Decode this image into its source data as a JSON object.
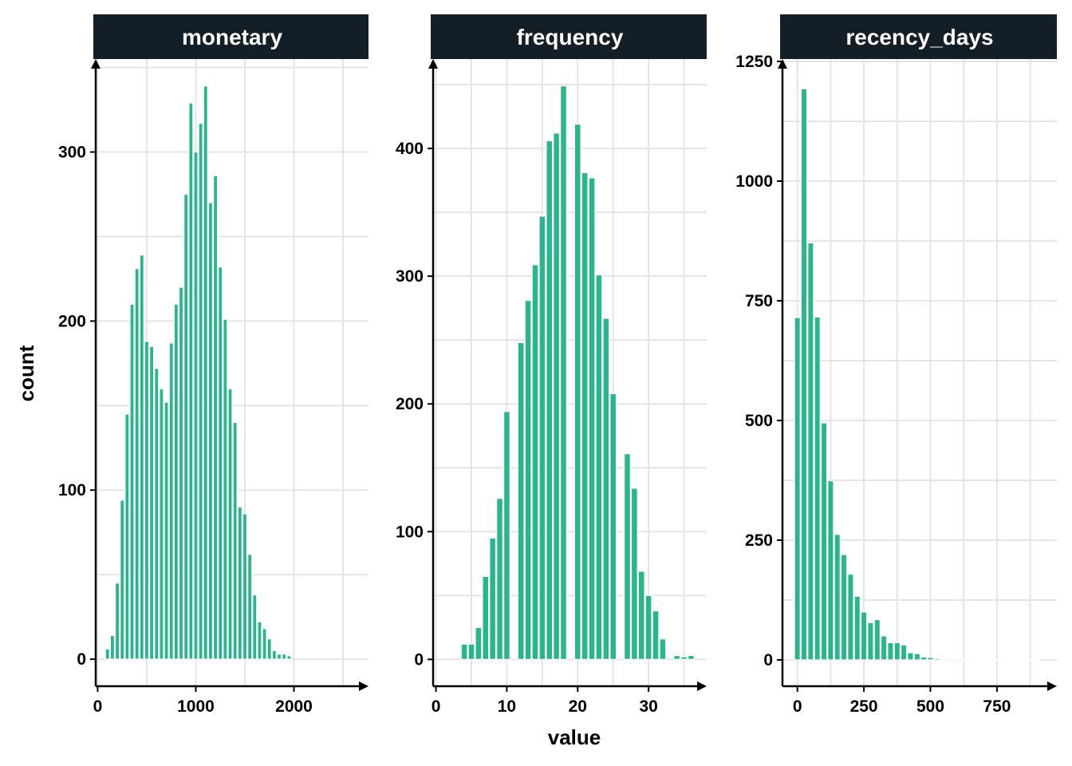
{
  "colors": {
    "bar": "#2ab58c",
    "strip_background": "#141e26",
    "strip_text": "#ffffff",
    "grid": "#e5e5e5",
    "axis": "#000000"
  },
  "chart_data": {
    "type": "bar",
    "layout": "facet_wrap",
    "xlabel": "value",
    "ylabel": "count",
    "facets": [
      {
        "title": "monetary",
        "bin_width": 50,
        "xlim": [
          -20,
          2760
        ],
        "ylim": [
          -16,
          355
        ],
        "x_ticks": [
          0,
          1000,
          2000
        ],
        "x_tick_labels": [
          "0",
          "1000",
          "2000"
        ],
        "y_ticks": [
          0,
          100,
          200,
          300
        ],
        "y_tick_labels": [
          "0",
          "100",
          "200",
          "300"
        ],
        "bin_centers": [
          0,
          50,
          100,
          150,
          200,
          250,
          300,
          350,
          400,
          450,
          500,
          550,
          600,
          650,
          700,
          750,
          800,
          850,
          900,
          950,
          1000,
          1050,
          1100,
          1150,
          1200,
          1250,
          1300,
          1350,
          1400,
          1450,
          1500,
          1550,
          1600,
          1650,
          1700,
          1750,
          1800,
          1850,
          1900,
          1950,
          2000,
          2050,
          2100,
          2150,
          2200,
          2250,
          2300,
          2350,
          2400,
          2450,
          2500,
          2550
        ],
        "counts": [
          0,
          0,
          6,
          14,
          45,
          94,
          145,
          210,
          231,
          239,
          188,
          185,
          172,
          160,
          152,
          187,
          210,
          220,
          275,
          329,
          300,
          317,
          339,
          270,
          286,
          232,
          201,
          160,
          140,
          90,
          86,
          62,
          38,
          22,
          18,
          12,
          5,
          3,
          3,
          2,
          0,
          0,
          0,
          0,
          0,
          0,
          0,
          0,
          0,
          0,
          0,
          0
        ]
      },
      {
        "title": "frequency",
        "bin_width": 1,
        "xlim": [
          -0.4,
          38.2
        ],
        "ylim": [
          -21,
          470
        ],
        "x_ticks": [
          0,
          10,
          20,
          30
        ],
        "x_tick_labels": [
          "0",
          "10",
          "20",
          "30"
        ],
        "y_ticks": [
          0,
          100,
          200,
          300,
          400
        ],
        "y_tick_labels": [
          "0",
          "100",
          "200",
          "300",
          "400"
        ],
        "bin_centers": [
          3,
          4,
          5,
          6,
          7,
          8,
          9,
          10,
          11,
          12,
          13,
          14,
          15,
          16,
          17,
          18,
          19,
          20,
          21,
          22,
          23,
          24,
          25,
          26,
          27,
          28,
          29,
          30,
          31,
          32,
          33,
          34,
          35,
          36
        ],
        "counts": [
          0,
          12,
          12,
          25,
          65,
          95,
          126,
          194,
          0,
          248,
          281,
          309,
          347,
          406,
          412,
          449,
          0,
          419,
          381,
          377,
          301,
          267,
          208,
          0,
          161,
          134,
          69,
          50,
          38,
          16,
          0,
          3,
          2,
          3
        ]
      },
      {
        "title": "recency_days",
        "bin_width": 25,
        "xlim": [
          -56,
          975
        ],
        "ylim": [
          -55,
          1255
        ],
        "x_ticks": [
          0,
          250,
          500,
          750
        ],
        "x_tick_labels": [
          "0",
          "250",
          "500",
          "750"
        ],
        "y_ticks": [
          0,
          250,
          500,
          750,
          1000,
          1250
        ],
        "y_tick_labels": [
          "0",
          "250",
          "500",
          "750",
          "1000",
          "1250"
        ],
        "bin_centers": [
          0,
          25,
          50,
          75,
          100,
          125,
          150,
          175,
          200,
          225,
          250,
          275,
          300,
          325,
          350,
          375,
          400,
          425,
          450,
          475,
          500,
          525,
          550,
          575,
          600,
          625,
          650,
          675,
          700,
          725,
          750,
          775,
          800,
          825,
          850,
          875,
          900
        ],
        "counts": [
          715,
          1193,
          871,
          716,
          495,
          374,
          262,
          220,
          179,
          133,
          100,
          78,
          84,
          50,
          36,
          36,
          31,
          15,
          13,
          6,
          5,
          3,
          2,
          2,
          2,
          2,
          1,
          1,
          1,
          1,
          1,
          1,
          1,
          1,
          1,
          1,
          1
        ]
      }
    ]
  }
}
